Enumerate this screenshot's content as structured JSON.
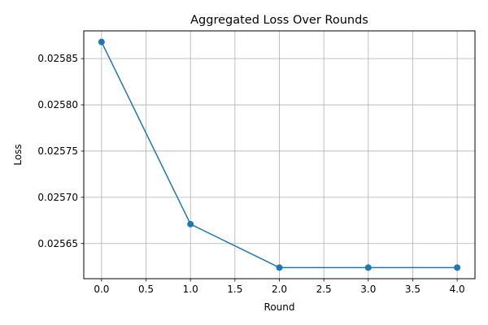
{
  "chart_data": {
    "type": "line",
    "title": "Aggregated Loss Over Rounds",
    "xlabel": "Round",
    "ylabel": "Loss",
    "x": [
      0,
      1,
      2,
      3,
      4
    ],
    "series": [
      {
        "values": [
          0.025868,
          0.025671,
          0.025624,
          0.025624,
          0.025624
        ],
        "color": "#1f77b4",
        "marker": "circle"
      }
    ],
    "xlim": [
      -0.2,
      4.2
    ],
    "ylim": [
      0.025612,
      0.02588
    ],
    "x_ticks": [
      0.0,
      0.5,
      1.0,
      1.5,
      2.0,
      2.5,
      3.0,
      3.5,
      4.0
    ],
    "x_tick_labels": [
      "0.0",
      "0.5",
      "1.0",
      "1.5",
      "2.0",
      "2.5",
      "3.0",
      "3.5",
      "4.0"
    ],
    "y_ticks": [
      0.02565,
      0.0257,
      0.02575,
      0.0258,
      0.02585
    ],
    "y_tick_labels": [
      "0.02565",
      "0.02570",
      "0.02575",
      "0.02580",
      "0.02585"
    ],
    "grid": true,
    "grid_color": "#b0b0b0"
  }
}
